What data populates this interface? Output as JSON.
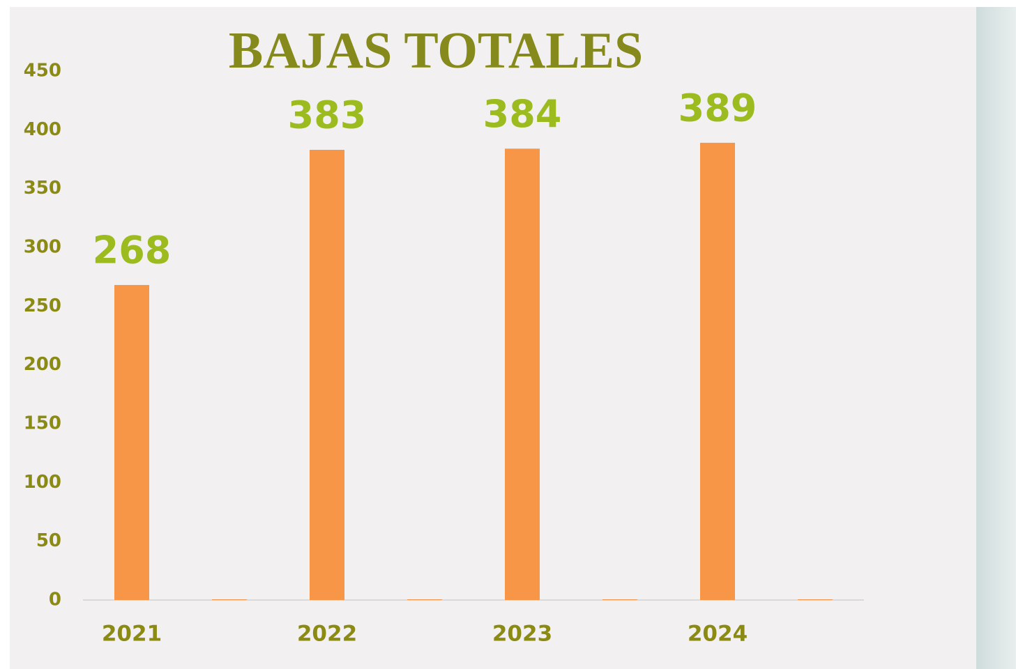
{
  "chart_data": {
    "type": "bar",
    "title": "BAJAS TOTALES",
    "categories": [
      "2021",
      "2022",
      "2023",
      "2024"
    ],
    "series": [
      {
        "color": "#f79646",
        "values": [
          268,
          383,
          384,
          389
        ]
      },
      {
        "color": "#f79646",
        "values": [
          0,
          0,
          0,
          0
        ]
      }
    ],
    "ylim": [
      0,
      450
    ],
    "yticks": [
      0,
      50,
      100,
      150,
      200,
      250,
      300,
      350,
      400,
      450
    ],
    "grid": false,
    "data_labels": [
      true,
      false
    ]
  }
}
